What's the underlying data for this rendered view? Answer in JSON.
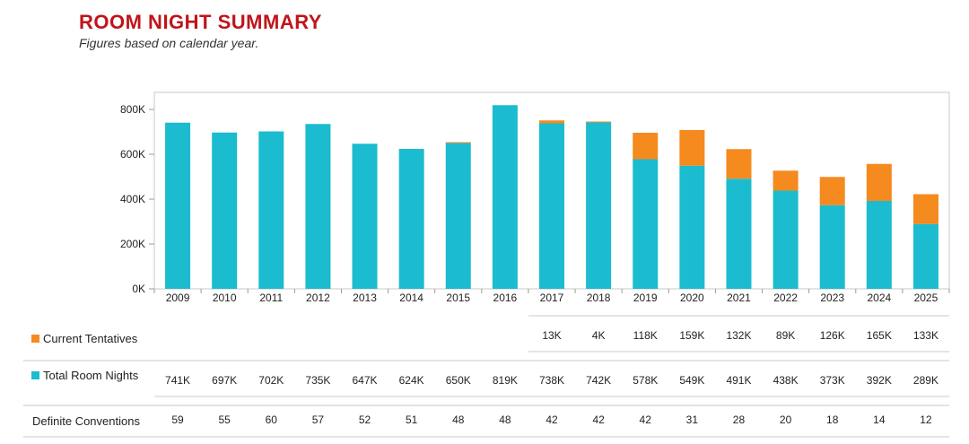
{
  "header": {
    "title": "ROOM NIGHT SUMMARY",
    "subtitle": "Figures based on calendar year."
  },
  "colors": {
    "total": "#1bbccf",
    "tentative": "#f58a1f",
    "title": "#c0141b"
  },
  "chart_data": {
    "type": "bar",
    "stacked": true,
    "categories": [
      "2009",
      "2010",
      "2011",
      "2012",
      "2013",
      "2014",
      "2015",
      "2016",
      "2017",
      "2018",
      "2019",
      "2020",
      "2021",
      "2022",
      "2023",
      "2024",
      "2025"
    ],
    "yticks": [
      "0K",
      "200K",
      "400K",
      "600K",
      "800K"
    ],
    "ylim": [
      0,
      850
    ],
    "grid": false,
    "series": [
      {
        "name": "Total Room Nights",
        "values": [
          741,
          697,
          702,
          735,
          647,
          624,
          650,
          819,
          738,
          742,
          578,
          549,
          491,
          438,
          373,
          392,
          289
        ],
        "labels": [
          "741K",
          "697K",
          "702K",
          "735K",
          "647K",
          "624K",
          "650K",
          "819K",
          "738K",
          "742K",
          "578K",
          "549K",
          "491K",
          "438K",
          "373K",
          "392K",
          "289K"
        ]
      },
      {
        "name": "Current Tentatives",
        "values": [
          0,
          0,
          0,
          0,
          0,
          0,
          4,
          0,
          13,
          4,
          118,
          159,
          132,
          89,
          126,
          165,
          133
        ],
        "labels": [
          "",
          "",
          "",
          "",
          "",
          "",
          "",
          "",
          "13K",
          "4K",
          "118K",
          "159K",
          "132K",
          "89K",
          "126K",
          "165K",
          "133K"
        ]
      }
    ]
  },
  "table": {
    "conventions_label": "Definite Conventions",
    "conventions": [
      "59",
      "55",
      "60",
      "57",
      "52",
      "51",
      "48",
      "48",
      "42",
      "42",
      "42",
      "31",
      "28",
      "20",
      "18",
      "14",
      "12"
    ]
  }
}
